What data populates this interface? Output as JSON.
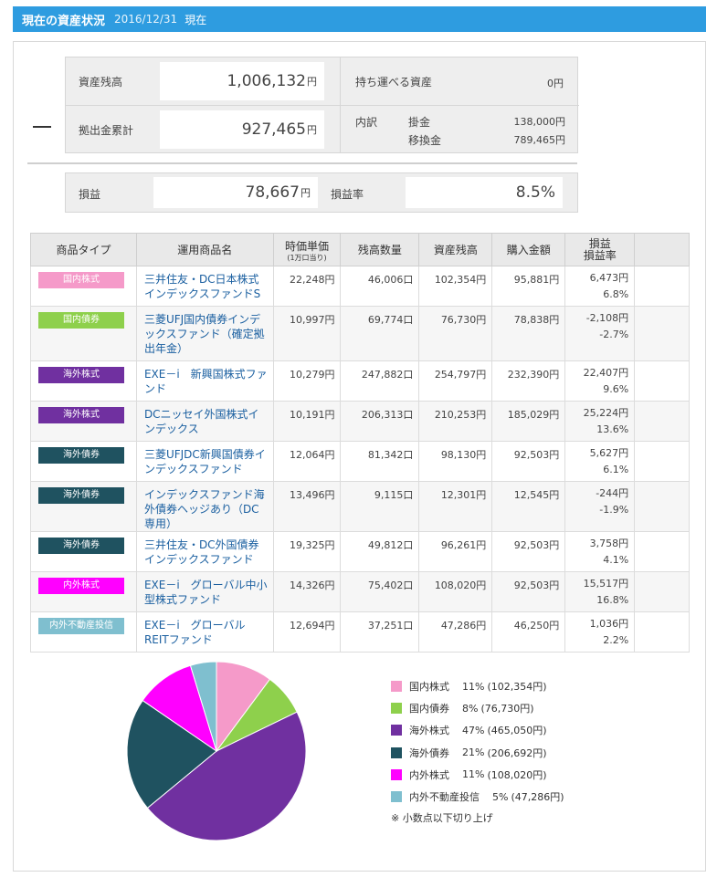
{
  "header": {
    "title": "現在の資産状況",
    "date": "2016/12/31",
    "now_label": "現在"
  },
  "summary": {
    "asset_balance_label": "資産残高",
    "asset_balance_value": "1,006,132",
    "contrib_total_label": "拠出金累計",
    "contrib_total_value": "927,465",
    "yen": "円",
    "portable_label": "持ち運べる資産",
    "portable_value": "0円",
    "breakdown_label": "内訳",
    "breakdown": [
      {
        "label": "掛金",
        "value": "138,000円"
      },
      {
        "label": "移換金",
        "value": "789,465円"
      }
    ],
    "profit_label": "損益",
    "profit_value": "78,667",
    "profit_rate_label": "損益率",
    "profit_rate_value": "8.5%"
  },
  "table": {
    "headers": {
      "type": "商品タイプ",
      "name": "運用商品名",
      "price": "時価単価",
      "price_sub": "(1万口当り)",
      "qty": "残高数量",
      "balance": "資産残高",
      "cost": "購入金額",
      "pl_1": "損益",
      "pl_2": "損益率"
    },
    "rows": [
      {
        "type": "国内株式",
        "color": "#f59ac9",
        "name": "三井住友・DC日本株式インデックスファンドS",
        "price": "22,248円",
        "qty": "46,006口",
        "balance": "102,354円",
        "cost": "95,881円",
        "pl": "6,473円",
        "rate": "6.8%",
        "neg": false
      },
      {
        "type": "国内債券",
        "color": "#8ed04c",
        "name": "三菱UFJ国内債券インデックスファンド（確定拠出年金）",
        "price": "10,997円",
        "qty": "69,774口",
        "balance": "76,730円",
        "cost": "78,838円",
        "pl": "-2,108円",
        "rate": "-2.7%",
        "neg": true
      },
      {
        "type": "海外株式",
        "color": "#7030a0",
        "name": "EXE－i　新興国株式ファンド",
        "price": "10,279円",
        "qty": "247,882口",
        "balance": "254,797円",
        "cost": "232,390円",
        "pl": "22,407円",
        "rate": "9.6%",
        "neg": false
      },
      {
        "type": "海外株式",
        "color": "#7030a0",
        "name": "DCニッセイ外国株式インデックス",
        "price": "10,191円",
        "qty": "206,313口",
        "balance": "210,253円",
        "cost": "185,029円",
        "pl": "25,224円",
        "rate": "13.6%",
        "neg": false
      },
      {
        "type": "海外債券",
        "color": "#1f5260",
        "name": "三菱UFJDC新興国債券インデックスファンド",
        "price": "12,064円",
        "qty": "81,342口",
        "balance": "98,130円",
        "cost": "92,503円",
        "pl": "5,627円",
        "rate": "6.1%",
        "neg": false
      },
      {
        "type": "海外債券",
        "color": "#1f5260",
        "name": "インデックスファンド海外債券ヘッジあり（DC専用）",
        "price": "13,496円",
        "qty": "9,115口",
        "balance": "12,301円",
        "cost": "12,545円",
        "pl": "-244円",
        "rate": "-1.9%",
        "neg": true
      },
      {
        "type": "海外債券",
        "color": "#1f5260",
        "name": "三井住友・DC外国債券インデックスファンド",
        "price": "19,325円",
        "qty": "49,812口",
        "balance": "96,261円",
        "cost": "92,503円",
        "pl": "3,758円",
        "rate": "4.1%",
        "neg": false
      },
      {
        "type": "内外株式",
        "color": "#ff00ff",
        "name": "EXE－i　グローバル中小型株式ファンド",
        "price": "14,326円",
        "qty": "75,402口",
        "balance": "108,020円",
        "cost": "92,503円",
        "pl": "15,517円",
        "rate": "16.8%",
        "neg": false
      },
      {
        "type": "内外不動産投信",
        "color": "#7fbfcf",
        "name": "EXE－i　グローバルREITファンド",
        "price": "12,694円",
        "qty": "37,251口",
        "balance": "47,286円",
        "cost": "46,250円",
        "pl": "1,036円",
        "rate": "2.2%",
        "neg": false
      }
    ]
  },
  "chart_data": {
    "type": "pie",
    "slices": [
      {
        "label": "国内株式",
        "pct": 11,
        "value": 102354,
        "value_text": "(102,354円)",
        "color": "#f59ac9"
      },
      {
        "label": "国内債券",
        "pct": 8,
        "value": 76730,
        "value_text": "(76,730円)",
        "color": "#8ed04c"
      },
      {
        "label": "海外株式",
        "pct": 47,
        "value": 465050,
        "value_text": "(465,050円)",
        "color": "#7030a0"
      },
      {
        "label": "海外債券",
        "pct": 21,
        "value": 206692,
        "value_text": "(206,692円)",
        "color": "#1f5260"
      },
      {
        "label": "内外株式",
        "pct": 11,
        "value": 108020,
        "value_text": "(108,020円)",
        "color": "#ff00ff"
      },
      {
        "label": "内外不動産投信",
        "pct": 5,
        "value": 47286,
        "value_text": "(47,286円)",
        "color": "#7fbfcf"
      }
    ],
    "note": "※ 小数点以下切り上げ"
  }
}
